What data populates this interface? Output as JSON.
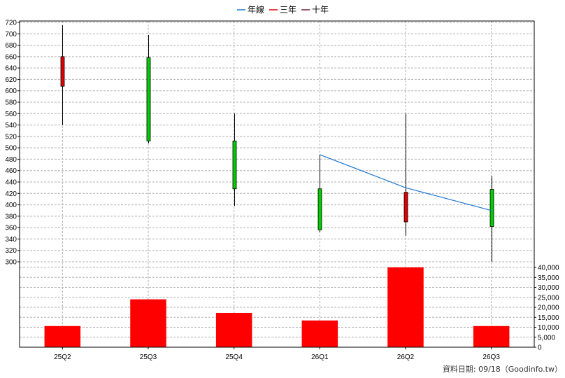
{
  "chart_data": {
    "type": "candlestick",
    "categories": [
      "25Q2",
      "25Q3",
      "25Q4",
      "26Q1",
      "26Q2",
      "26Q3"
    ],
    "ohlc": [
      {
        "open": 608,
        "high": 715,
        "low": 540,
        "close": 660
      },
      {
        "open": 658,
        "high": 698,
        "low": 508,
        "close": 512
      },
      {
        "open": 512,
        "high": 560,
        "low": 398,
        "close": 428
      },
      {
        "open": 428,
        "high": 488,
        "low": 352,
        "close": 356
      },
      {
        "open": 370,
        "high": 560,
        "low": 346,
        "close": 422
      },
      {
        "open": 427,
        "high": 450,
        "low": 300,
        "close": 362
      }
    ],
    "volume": [
      10600,
      24000,
      17200,
      13400,
      40000,
      10600
    ],
    "price_axis": {
      "range": [
        300,
        720
      ],
      "step": 20
    },
    "volume_axis": {
      "range": [
        0,
        40000
      ],
      "step": 5000
    },
    "price_ticks": [
      "720",
      "700",
      "680",
      "660",
      "640",
      "620",
      "600",
      "580",
      "560",
      "540",
      "520",
      "500",
      "480",
      "460",
      "440",
      "420",
      "400",
      "380",
      "360",
      "340",
      "320",
      "300"
    ],
    "volume_ticks": [
      "40,000",
      "35,000",
      "30,000",
      "25,000",
      "20,000",
      "15,000",
      "10,000",
      "5,000",
      "0"
    ],
    "legend": [
      {
        "label": "年線",
        "color": "#1f77d4"
      },
      {
        "label": "三年",
        "color": "#e00000"
      },
      {
        "label": "十年",
        "color": "#7b1f3a"
      }
    ],
    "year_line": {
      "name": "年線",
      "points": [
        {
          "x": "26Q1",
          "y": 488
        },
        {
          "x": "26Q2",
          "y": 430
        },
        {
          "x": "26Q3",
          "y": 390
        }
      ]
    },
    "colors": {
      "up": "#e00000",
      "down": "#00cc00",
      "volume": "#ff0000",
      "year_line": "#1f77d4",
      "grid": "#b0b0b0"
    },
    "grid": true,
    "legend_position": "top-center",
    "footer": "資料日期: 09/18（Goodinfo.tw）"
  }
}
